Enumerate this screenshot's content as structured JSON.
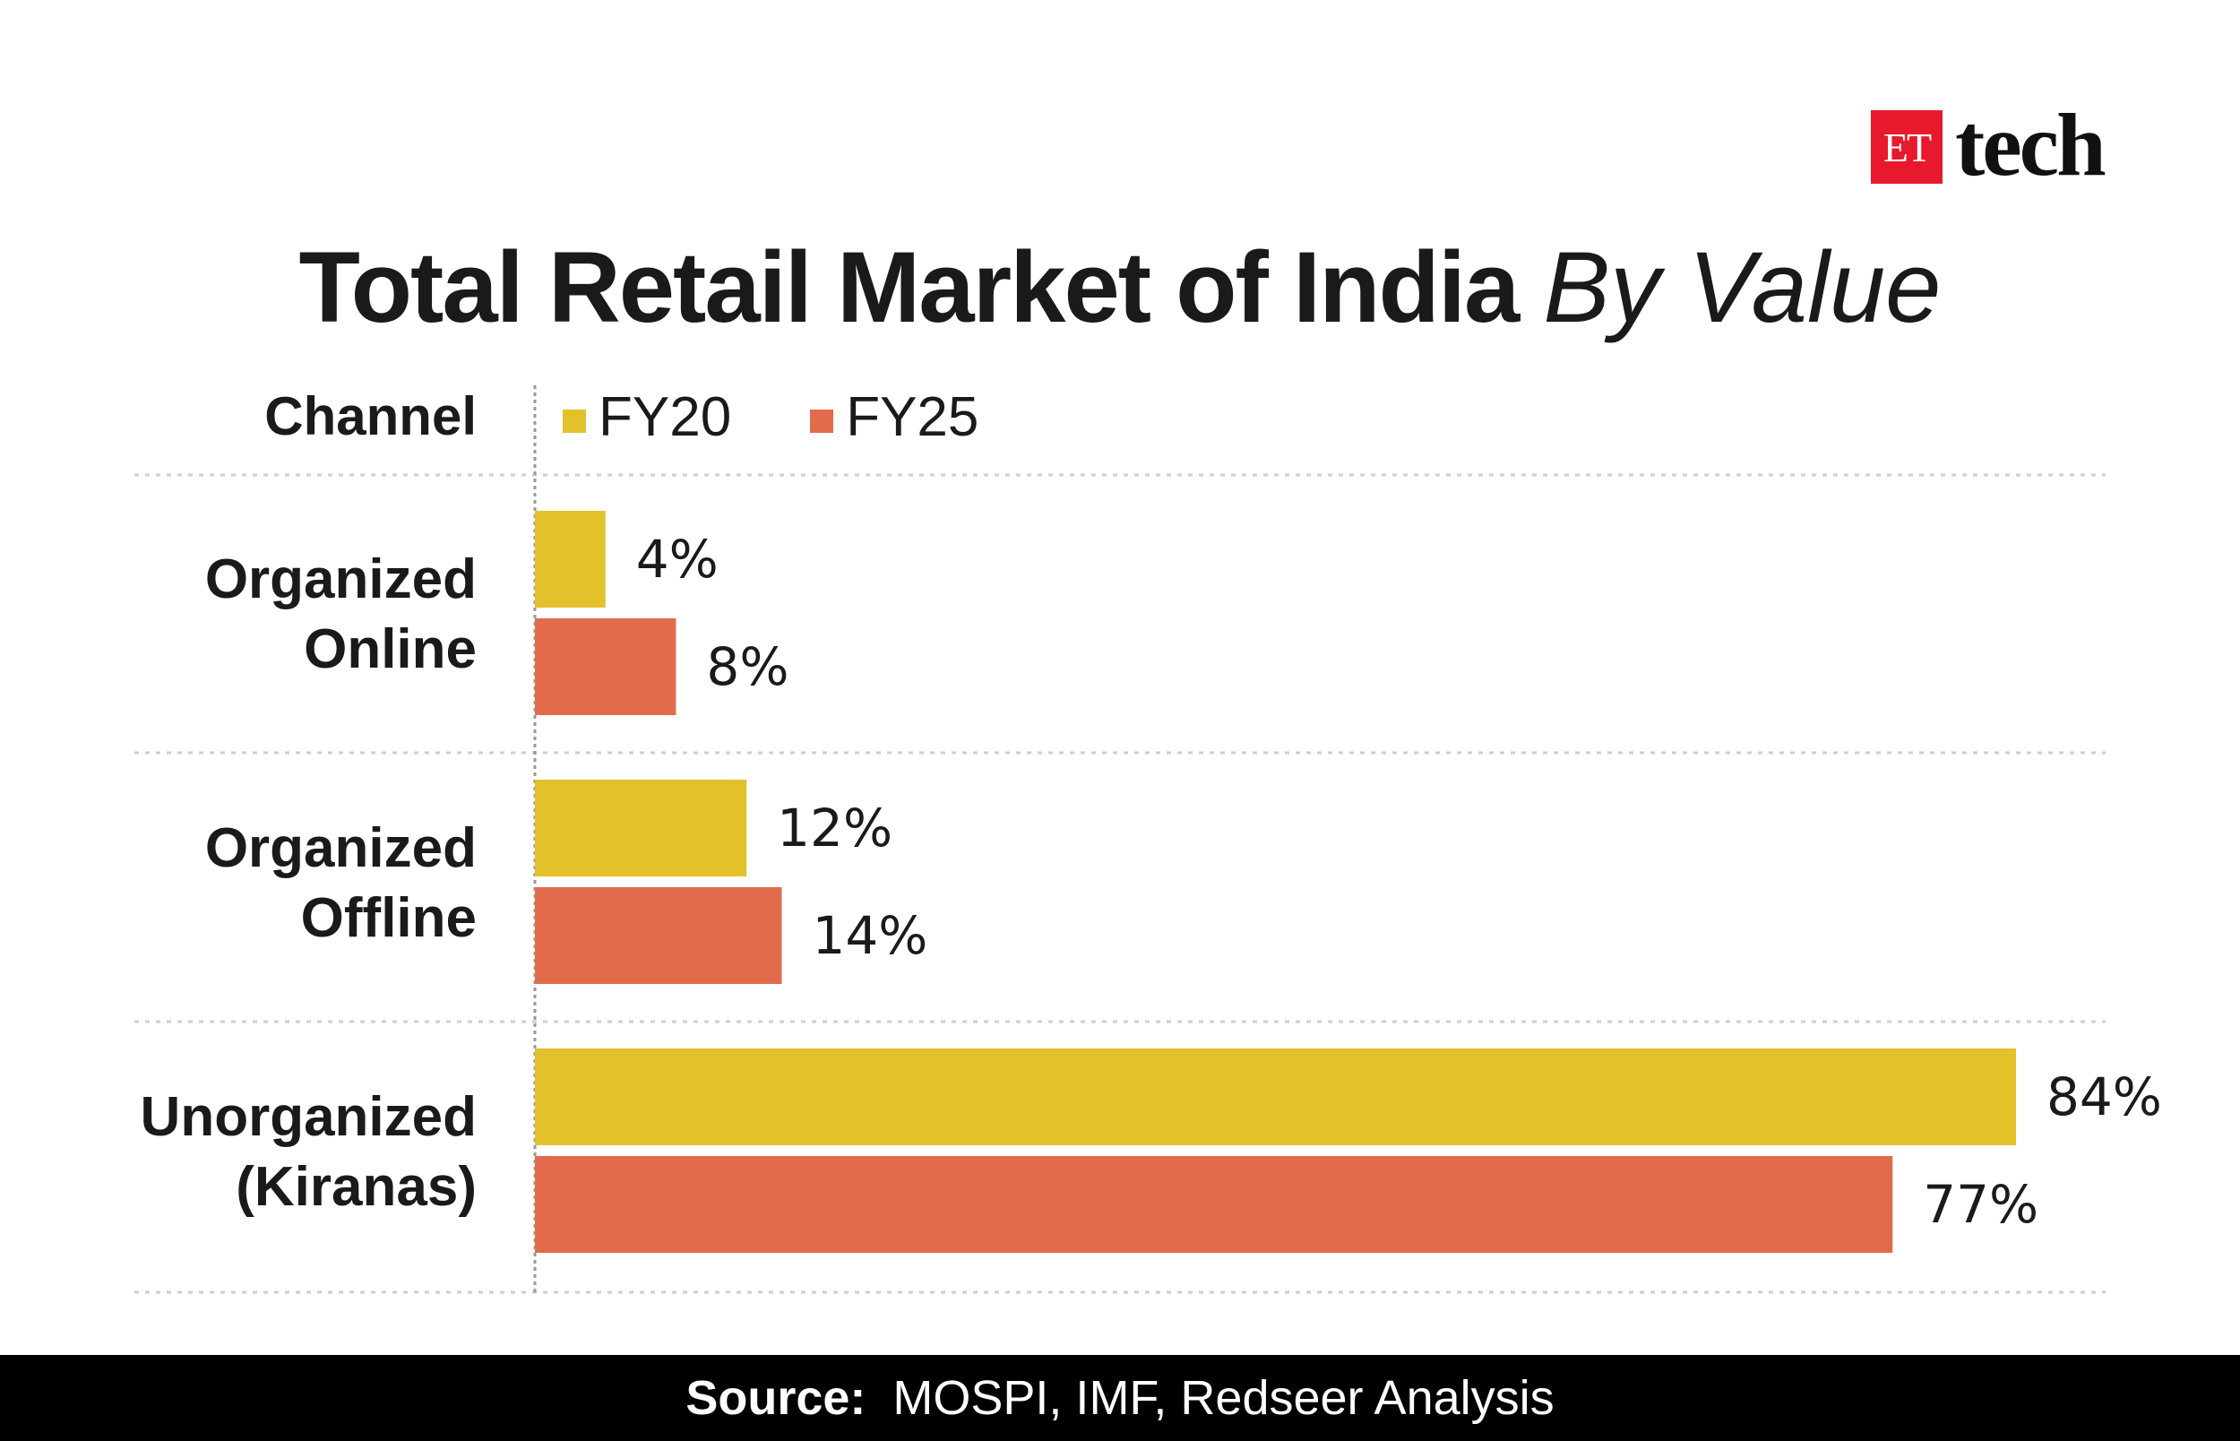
{
  "brand": {
    "et_label": "ET",
    "tech_label": "tech",
    "et_color": "#e8192c"
  },
  "title": {
    "main": "Total Retail Market of India",
    "sub": "By Value"
  },
  "header": {
    "channel_label": "Channel"
  },
  "footer": {
    "source_label": "Source:",
    "source_text": "MOSPI, IMF, Redseer Analysis"
  },
  "chart_data": {
    "type": "bar",
    "orientation": "horizontal",
    "categories": [
      [
        "Organized",
        "Online"
      ],
      [
        "Organized",
        "Offline"
      ],
      [
        "Unorganized",
        "(Kiranas)"
      ]
    ],
    "series": [
      {
        "name": "FY20",
        "color": "#e2c12a",
        "values": [
          4,
          12,
          84
        ],
        "labels": [
          "4%",
          "12%",
          "84%"
        ]
      },
      {
        "name": "FY25",
        "color": "#e26b4c",
        "values": [
          8,
          14,
          77
        ],
        "labels": [
          "8%",
          "14%",
          "77%"
        ]
      }
    ],
    "unit": "%",
    "xlim": [
      0,
      84
    ],
    "grid": false,
    "legend_placement": "top-left"
  }
}
